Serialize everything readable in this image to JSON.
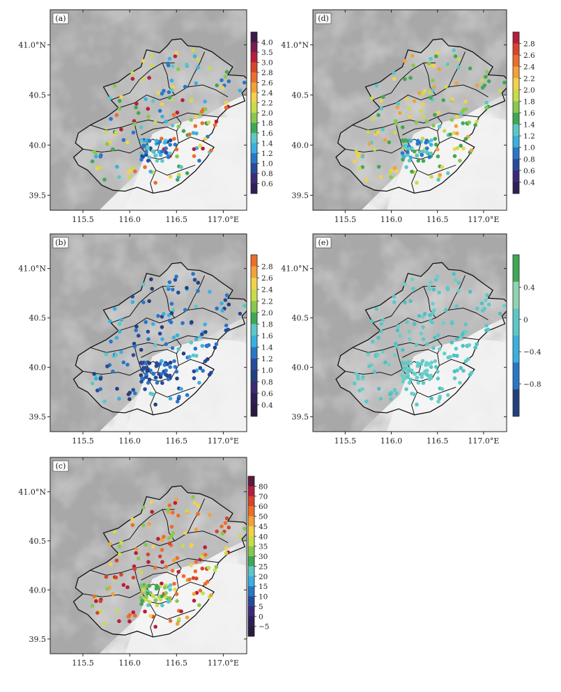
{
  "figure": {
    "axes": {
      "lon_ticks": [
        "115.5",
        "116.0",
        "116.5",
        "117.0°E"
      ],
      "lat_ticks": [
        "41.0°N",
        "40.5",
        "40.0",
        "39.5"
      ],
      "lon_values": [
        115.5,
        116.0,
        116.5,
        117.0
      ],
      "lat_values": [
        41.0,
        40.5,
        40.0,
        39.5
      ],
      "lon_range": [
        115.15,
        117.25
      ],
      "lat_range": [
        39.35,
        41.35
      ]
    },
    "panels": [
      {
        "id": "a",
        "label": "(a)",
        "colorbar": {
          "labels": [
            "4.0",
            "3.5",
            "3.0",
            "2.8",
            "2.6",
            "2.4",
            "2.2",
            "2.0",
            "1.8",
            "1.6",
            "1.4",
            "1.2",
            "1.0",
            "0.8",
            "0.6"
          ],
          "colors": [
            "#3b1a4a",
            "#7a1c4e",
            "#b81e3c",
            "#d8452a",
            "#ec6e2a",
            "#f3a23a",
            "#f2d24a",
            "#c8dc4a",
            "#87c94d",
            "#3fa855",
            "#5ac8c8",
            "#3ab0e0",
            "#2877c8",
            "#274a9c",
            "#3c2a78",
            "#2e1f55"
          ]
        },
        "points": {
          "palette": [
            "#f2d24a",
            "#3fa855",
            "#87c94d",
            "#5ac8c8",
            "#3ab0e0",
            "#ec6e2a",
            "#c8dc4a",
            "#b81e3c",
            "#2877c8"
          ],
          "core_palette": [
            "#2877c8",
            "#3ab0e0",
            "#274a9c",
            "#5ac8c8"
          ]
        }
      },
      {
        "id": "b",
        "label": "(b)",
        "colorbar": {
          "labels": [
            "2.8",
            "2.6",
            "2.4",
            "2.2",
            "2.0",
            "1.8",
            "1.6",
            "1.4",
            "1.2",
            "1.0",
            "0.8",
            "0.6",
            "0.4"
          ],
          "colors": [
            "#ec6e2a",
            "#f3a23a",
            "#f2d24a",
            "#c8dc4a",
            "#87c94d",
            "#3fa855",
            "#5ac8c8",
            "#3ab0e0",
            "#2877c8",
            "#274a9c",
            "#23407e",
            "#3c2a78",
            "#2e1f55",
            "#2a1a40"
          ]
        },
        "points": {
          "palette": [
            "#274a9c",
            "#2877c8",
            "#3ab0e0",
            "#23407e",
            "#2877c8",
            "#5ac8c8"
          ],
          "core_palette": [
            "#274a9c",
            "#23407e",
            "#2877c8"
          ]
        }
      },
      {
        "id": "c",
        "label": "(c)",
        "colorbar": {
          "labels": [
            "80",
            "70",
            "60",
            "50",
            "45",
            "40",
            "35",
            "30",
            "25",
            "20",
            "15",
            "10",
            "5",
            "0",
            "−5"
          ],
          "colors": [
            "#5b1a3c",
            "#b81e3c",
            "#d8452a",
            "#ec6e2a",
            "#f3a23a",
            "#f2d24a",
            "#c8dc4a",
            "#87c94d",
            "#3fa855",
            "#5ac8c8",
            "#3ab0e0",
            "#2877c8",
            "#274a9c",
            "#3c2a78",
            "#2e1f55",
            "#2a1a40"
          ]
        },
        "points": {
          "palette": [
            "#ec6e2a",
            "#d8452a",
            "#f3a23a",
            "#b81e3c",
            "#f2d24a",
            "#c8dc4a",
            "#87c94d",
            "#ec6e2a"
          ],
          "core_palette": [
            "#3fa855",
            "#87c94d",
            "#5ac8c8",
            "#c8dc4a"
          ]
        }
      },
      {
        "id": "d",
        "label": "(d)",
        "colorbar": {
          "labels": [
            "2.8",
            "2.6",
            "2.4",
            "2.2",
            "2.0",
            "1.8",
            "1.6",
            "1.4",
            "1.2",
            "1.0",
            "0.8",
            "0.6",
            "0.4"
          ],
          "colors": [
            "#b81e3c",
            "#d8452a",
            "#ec6e2a",
            "#f3a23a",
            "#f2d24a",
            "#c8dc4a",
            "#87c94d",
            "#3fa855",
            "#5ac8c8",
            "#3ab0e0",
            "#2877c8",
            "#274a9c",
            "#3c2a78",
            "#2e1f55"
          ]
        },
        "points": {
          "palette": [
            "#3fa855",
            "#87c94d",
            "#c8dc4a",
            "#f2d24a",
            "#f3a23a",
            "#3fa855",
            "#5ac8c8"
          ],
          "core_palette": [
            "#2877c8",
            "#3ab0e0",
            "#5ac8c8",
            "#3fa855"
          ]
        }
      },
      {
        "id": "e",
        "label": "(e)",
        "colorbar": {
          "labels": [
            "0.4",
            "0",
            "−0.4",
            "−0.8"
          ],
          "colors": [
            "#3fa855",
            "#8fd4b0",
            "#5ac8c8",
            "#3ab0e0",
            "#2877c8",
            "#23407e"
          ]
        },
        "points": {
          "palette": [
            "#5ac8c8",
            "#5ac8c8",
            "#6acfc8",
            "#4ec0c4"
          ],
          "core_palette": [
            "#5ac8c8",
            "#6acfc8"
          ]
        }
      }
    ]
  }
}
